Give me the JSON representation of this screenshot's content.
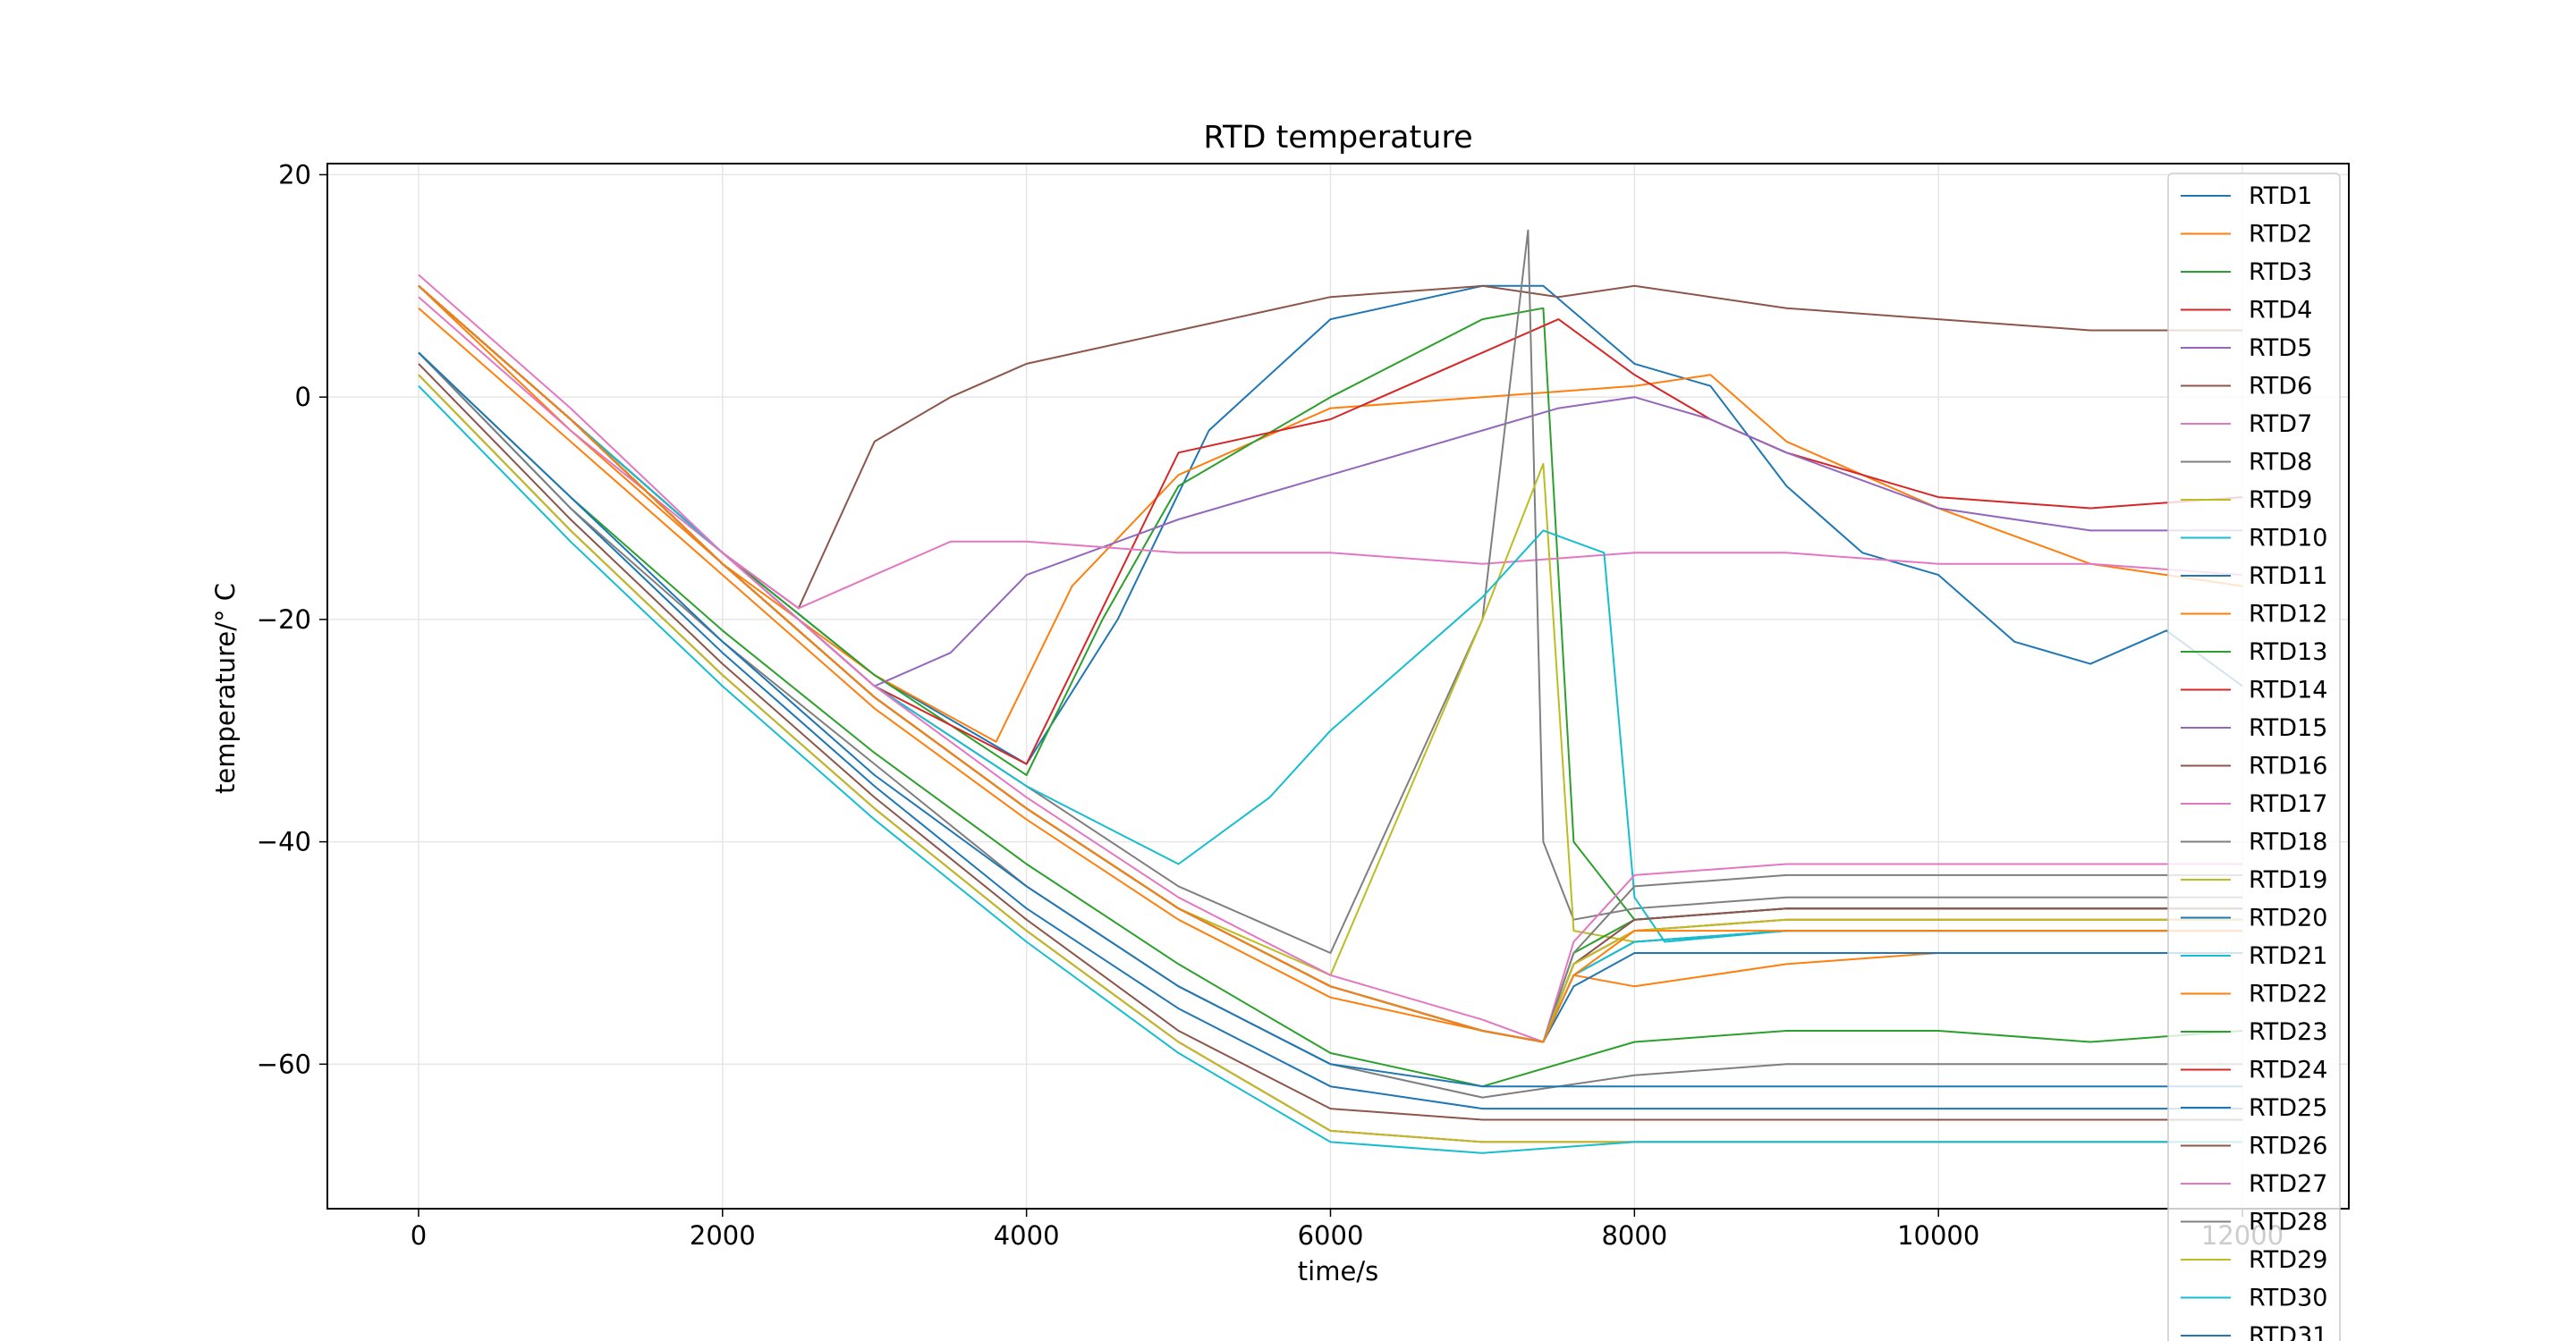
{
  "chart_data": {
    "type": "line",
    "title": "RTD temperature",
    "xlabel": "time/s",
    "ylabel": "temperature/$^\\circ C$",
    "ylabel_display": "temperature/° C",
    "xlim": [
      -600,
      12700
    ],
    "ylim": [
      -73,
      21
    ],
    "xticks": [
      0,
      2000,
      4000,
      6000,
      8000,
      10000,
      12000
    ],
    "xtick_labels": [
      "0",
      "2000",
      "4000",
      "6000",
      "8000",
      "10000",
      "12000"
    ],
    "yticks": [
      -60,
      -40,
      -20,
      0,
      20
    ],
    "ytick_labels": [
      "−60",
      "−40",
      "−20",
      "0",
      "20"
    ],
    "grid": true,
    "legend_position": "right",
    "series": [
      {
        "name": "RTD1",
        "color": "#1f77b4",
        "x": [
          0,
          1000,
          2000,
          3000,
          4000,
          4600,
          5200,
          6000,
          7000,
          7400,
          8000,
          8500,
          9000,
          9500,
          10000,
          10500,
          11000,
          11500,
          12000
        ],
        "y": [
          10,
          -2,
          -14,
          -25,
          -33,
          -20,
          -3,
          7,
          10,
          10,
          3,
          1,
          -8,
          -14,
          -16,
          -22,
          -24,
          -21,
          -26
        ]
      },
      {
        "name": "RTD2",
        "color": "#ff7f0e",
        "x": [
          0,
          1000,
          2000,
          3000,
          3800,
          4300,
          5000,
          6000,
          7000,
          8000,
          8500,
          9000,
          10000,
          11000,
          12000
        ],
        "y": [
          10,
          -3,
          -15,
          -25,
          -31,
          -17,
          -7,
          -1,
          0,
          1,
          2,
          -4,
          -10,
          -15,
          -17
        ]
      },
      {
        "name": "RTD3",
        "color": "#2ca02c",
        "x": [
          0,
          1000,
          2000,
          3000,
          4000,
          4500,
          5000,
          6000,
          7000,
          7400,
          7600,
          8000,
          9000,
          10000,
          11000,
          12000
        ],
        "y": [
          10,
          -2,
          -14,
          -25,
          -34,
          -20,
          -8,
          0,
          7,
          8,
          -40,
          -47,
          -46,
          -46,
          -46,
          -46
        ]
      },
      {
        "name": "RTD4",
        "color": "#d62728",
        "x": [
          0,
          1000,
          2000,
          3000,
          4000,
          5000,
          6000,
          7000,
          7500,
          8000,
          8500,
          9000,
          10000,
          11000,
          12000
        ],
        "y": [
          10,
          -2,
          -14,
          -26,
          -33,
          -5,
          -2,
          4,
          7,
          2,
          -2,
          -5,
          -9,
          -10,
          -9
        ]
      },
      {
        "name": "RTD5",
        "color": "#9467bd",
        "x": [
          0,
          1000,
          2000,
          3000,
          3500,
          4000,
          5000,
          6000,
          7000,
          7500,
          8000,
          8500,
          9000,
          10000,
          11000,
          12000
        ],
        "y": [
          10,
          -2,
          -14,
          -26,
          -23,
          -16,
          -11,
          -7,
          -3,
          -1,
          0,
          -2,
          -5,
          -10,
          -12,
          -12
        ]
      },
      {
        "name": "RTD6",
        "color": "#8c564b",
        "x": [
          0,
          1000,
          2000,
          2500,
          3000,
          3500,
          4000,
          5000,
          6000,
          7000,
          7500,
          8000,
          8500,
          9000,
          10000,
          11000,
          12000
        ],
        "y": [
          10,
          -2,
          -14,
          -19,
          -4,
          0,
          3,
          6,
          9,
          10,
          9,
          10,
          9,
          8,
          7,
          6,
          6
        ]
      },
      {
        "name": "RTD7",
        "color": "#e377c2",
        "x": [
          0,
          1000,
          2000,
          2500,
          3000,
          3500,
          4000,
          5000,
          6000,
          7000,
          8000,
          9000,
          10000,
          11000,
          12000
        ],
        "y": [
          9,
          -3,
          -14,
          -19,
          -16,
          -13,
          -13,
          -14,
          -14,
          -15,
          -14,
          -14,
          -15,
          -15,
          -16
        ]
      },
      {
        "name": "RTD8",
        "color": "#7f7f7f",
        "x": [
          0,
          1000,
          2000,
          3000,
          4000,
          5000,
          6000,
          7000,
          7300,
          7400,
          7600,
          8000,
          9000,
          10000,
          11000,
          12000
        ],
        "y": [
          10,
          -2,
          -14,
          -26,
          -35,
          -44,
          -50,
          -20,
          15,
          -40,
          -47,
          -46,
          -45,
          -45,
          -45,
          -45
        ]
      },
      {
        "name": "RTD9",
        "color": "#bcbd22",
        "x": [
          0,
          1000,
          2000,
          3000,
          4000,
          5000,
          6000,
          7000,
          7400,
          7600,
          8000,
          9000,
          10000,
          11000,
          12000
        ],
        "y": [
          10,
          -2,
          -15,
          -27,
          -37,
          -46,
          -52,
          -20,
          -6,
          -48,
          -49,
          -48,
          -48,
          -48,
          -48
        ]
      },
      {
        "name": "RTD10",
        "color": "#17becf",
        "x": [
          0,
          1000,
          2000,
          3000,
          4000,
          5000,
          5600,
          6000,
          7000,
          7400,
          7800,
          8000,
          8200,
          9000,
          10000,
          11000,
          12000
        ],
        "y": [
          10,
          -2,
          -14,
          -26,
          -35,
          -42,
          -36,
          -30,
          -18,
          -12,
          -14,
          -45,
          -49,
          -48,
          -48,
          -48,
          -48
        ]
      },
      {
        "name": "RTD11",
        "color": "#1f77b4",
        "x": [
          0,
          1000,
          2000,
          3000,
          4000,
          5000,
          6000,
          7000,
          7400,
          7600,
          8000,
          9000,
          10000,
          11000,
          12000
        ],
        "y": [
          10,
          -2,
          -15,
          -27,
          -37,
          -46,
          -53,
          -57,
          -58,
          -52,
          -49,
          -48,
          -48,
          -48,
          -48
        ]
      },
      {
        "name": "RTD12",
        "color": "#ff7f0e",
        "x": [
          0,
          1000,
          2000,
          3000,
          4000,
          5000,
          6000,
          7000,
          7400,
          7600,
          8000,
          9000,
          10000,
          11000,
          12000
        ],
        "y": [
          8,
          -4,
          -16,
          -28,
          -38,
          -47,
          -54,
          -57,
          -58,
          -52,
          -53,
          -51,
          -50,
          -50,
          -50
        ]
      },
      {
        "name": "RTD13",
        "color": "#2ca02c",
        "x": [
          0,
          1000,
          2000,
          3000,
          4000,
          5000,
          6000,
          7000,
          7400,
          7600,
          8000,
          9000,
          10000,
          11000,
          12000
        ],
        "y": [
          10,
          -2,
          -15,
          -27,
          -37,
          -46,
          -53,
          -57,
          -58,
          -50,
          -47,
          -46,
          -46,
          -46,
          -46
        ]
      },
      {
        "name": "RTD14",
        "color": "#d62728",
        "x": [
          0,
          1000,
          2000,
          3000,
          4000,
          5000,
          6000,
          7000,
          7400,
          7600,
          8000,
          9000,
          10000,
          11000,
          12000
        ],
        "y": [
          10,
          -2,
          -15,
          -27,
          -37,
          -46,
          -53,
          -57,
          -58,
          -51,
          -48,
          -47,
          -47,
          -47,
          -47
        ]
      },
      {
        "name": "RTD15",
        "color": "#9467bd",
        "x": [
          0,
          1000,
          2000,
          3000,
          4000,
          5000,
          6000,
          7000,
          7400,
          7600,
          8000,
          9000,
          10000,
          11000,
          12000
        ],
        "y": [
          10,
          -2,
          -15,
          -27,
          -37,
          -46,
          -53,
          -57,
          -58,
          -51,
          -47,
          -46,
          -46,
          -46,
          -46
        ]
      },
      {
        "name": "RTD16",
        "color": "#8c564b",
        "x": [
          0,
          1000,
          2000,
          3000,
          4000,
          5000,
          6000,
          7000,
          7400,
          7600,
          8000,
          9000,
          10000,
          11000,
          12000
        ],
        "y": [
          10,
          -2,
          -15,
          -27,
          -37,
          -46,
          -53,
          -57,
          -58,
          -51,
          -47,
          -46,
          -46,
          -46,
          -46
        ]
      },
      {
        "name": "RTD17",
        "color": "#e377c2",
        "x": [
          0,
          1000,
          2000,
          3000,
          4000,
          5000,
          6000,
          7000,
          7400,
          7600,
          8000,
          9000,
          10000,
          11000,
          12000
        ],
        "y": [
          11,
          -1,
          -14,
          -26,
          -36,
          -45,
          -52,
          -56,
          -58,
          -49,
          -43,
          -42,
          -42,
          -42,
          -42
        ]
      },
      {
        "name": "RTD18",
        "color": "#7f7f7f",
        "x": [
          0,
          1000,
          2000,
          3000,
          4000,
          5000,
          6000,
          7000,
          7400,
          7600,
          8000,
          9000,
          10000,
          11000,
          12000
        ],
        "y": [
          10,
          -2,
          -15,
          -27,
          -37,
          -46,
          -53,
          -57,
          -58,
          -50,
          -44,
          -43,
          -43,
          -43,
          -43
        ]
      },
      {
        "name": "RTD19",
        "color": "#bcbd22",
        "x": [
          0,
          1000,
          2000,
          3000,
          4000,
          5000,
          6000,
          7000,
          7400,
          7600,
          8000,
          9000,
          10000,
          11000,
          12000
        ],
        "y": [
          10,
          -2,
          -15,
          -27,
          -37,
          -46,
          -53,
          -57,
          -58,
          -51,
          -48,
          -47,
          -47,
          -47,
          -47
        ]
      },
      {
        "name": "RTD20",
        "color": "#1f77b4",
        "x": [
          0,
          1000,
          2000,
          3000,
          4000,
          5000,
          6000,
          7000,
          7400,
          7600,
          8000,
          9000,
          10000,
          11000,
          12000
        ],
        "y": [
          10,
          -2,
          -15,
          -27,
          -37,
          -46,
          -53,
          -57,
          -58,
          -53,
          -50,
          -50,
          -50,
          -50,
          -50
        ]
      },
      {
        "name": "RTD21",
        "color": "#17becf",
        "x": [
          0,
          1000,
          2000,
          3000,
          4000,
          5000,
          6000,
          7000,
          7400,
          7600,
          8000,
          9000,
          10000,
          11000,
          12000
        ],
        "y": [
          10,
          -2,
          -15,
          -27,
          -37,
          -46,
          -53,
          -57,
          -58,
          -52,
          -49,
          -48,
          -48,
          -48,
          -48
        ]
      },
      {
        "name": "RTD22",
        "color": "#ff7f0e",
        "x": [
          0,
          1000,
          2000,
          3000,
          4000,
          5000,
          6000,
          7000,
          7400,
          7600,
          8000,
          9000,
          10000,
          11000,
          12000
        ],
        "y": [
          10,
          -2,
          -15,
          -27,
          -37,
          -46,
          -53,
          -57,
          -58,
          -52,
          -48,
          -48,
          -48,
          -48,
          -48
        ]
      },
      {
        "name": "RTD23",
        "color": "#2ca02c",
        "x": [
          0,
          1000,
          2000,
          3000,
          4000,
          5000,
          6000,
          7000,
          8000,
          9000,
          10000,
          11000,
          12000
        ],
        "y": [
          4,
          -9,
          -21,
          -32,
          -42,
          -51,
          -59,
          -62,
          -58,
          -57,
          -57,
          -58,
          -57
        ]
      },
      {
        "name": "RTD24",
        "color": "#d62728",
        "x": [
          0,
          1000,
          2000,
          3000,
          4000,
          5000,
          6000,
          7000,
          8000,
          9000,
          10000,
          11000,
          12000
        ],
        "y": [
          2,
          -12,
          -25,
          -37,
          -48,
          -58,
          -66,
          -67,
          -67,
          -67,
          -67,
          -67,
          -67
        ]
      },
      {
        "name": "RTD25",
        "color": "#1f77b4",
        "x": [
          0,
          1000,
          2000,
          3000,
          4000,
          5000,
          6000,
          7000,
          8000,
          9000,
          10000,
          11000,
          12000
        ],
        "y": [
          4,
          -10,
          -23,
          -35,
          -46,
          -55,
          -62,
          -64,
          -64,
          -64,
          -64,
          -64,
          -64
        ]
      },
      {
        "name": "RTD26",
        "color": "#8c564b",
        "x": [
          0,
          1000,
          2000,
          3000,
          4000,
          5000,
          6000,
          7000,
          8000,
          9000,
          10000,
          11000,
          12000
        ],
        "y": [
          3,
          -11,
          -24,
          -36,
          -47,
          -57,
          -64,
          -65,
          -65,
          -65,
          -65,
          -65,
          -65
        ]
      },
      {
        "name": "RTD27",
        "color": "#e377c2",
        "x": [
          0,
          1000,
          2000,
          3000,
          4000,
          5000,
          6000,
          7000,
          8000,
          9000,
          10000,
          11000,
          12000
        ],
        "y": [
          2,
          -12,
          -25,
          -37,
          -48,
          -58,
          -66,
          -67,
          -67,
          -67,
          -67,
          -67,
          -67
        ]
      },
      {
        "name": "RTD28",
        "color": "#7f7f7f",
        "x": [
          0,
          1000,
          2000,
          3000,
          4000,
          5000,
          6000,
          7000,
          8000,
          9000,
          10000,
          11000,
          12000
        ],
        "y": [
          4,
          -10,
          -22,
          -33,
          -44,
          -53,
          -60,
          -63,
          -61,
          -60,
          -60,
          -60,
          -60
        ]
      },
      {
        "name": "RTD29",
        "color": "#bcbd22",
        "x": [
          0,
          1000,
          2000,
          3000,
          4000,
          5000,
          6000,
          7000,
          8000,
          9000,
          10000,
          11000,
          12000
        ],
        "y": [
          2,
          -12,
          -25,
          -37,
          -48,
          -58,
          -66,
          -67,
          -67,
          -67,
          -67,
          -67,
          -67
        ]
      },
      {
        "name": "RTD30",
        "color": "#17becf",
        "x": [
          0,
          1000,
          2000,
          3000,
          4000,
          5000,
          6000,
          7000,
          8000,
          9000,
          10000,
          11000,
          12000
        ],
        "y": [
          1,
          -13,
          -26,
          -38,
          -49,
          -59,
          -67,
          -68,
          -67,
          -67,
          -67,
          -67,
          -67
        ]
      },
      {
        "name": "RTD31",
        "color": "#1f77b4",
        "x": [
          0,
          1000,
          2000,
          3000,
          4000,
          5000,
          6000,
          7000,
          8000,
          9000,
          10000,
          11000,
          12000
        ],
        "y": [
          4,
          -9,
          -22,
          -34,
          -44,
          -53,
          -60,
          -62,
          -62,
          -62,
          -62,
          -62,
          -62
        ]
      }
    ]
  }
}
